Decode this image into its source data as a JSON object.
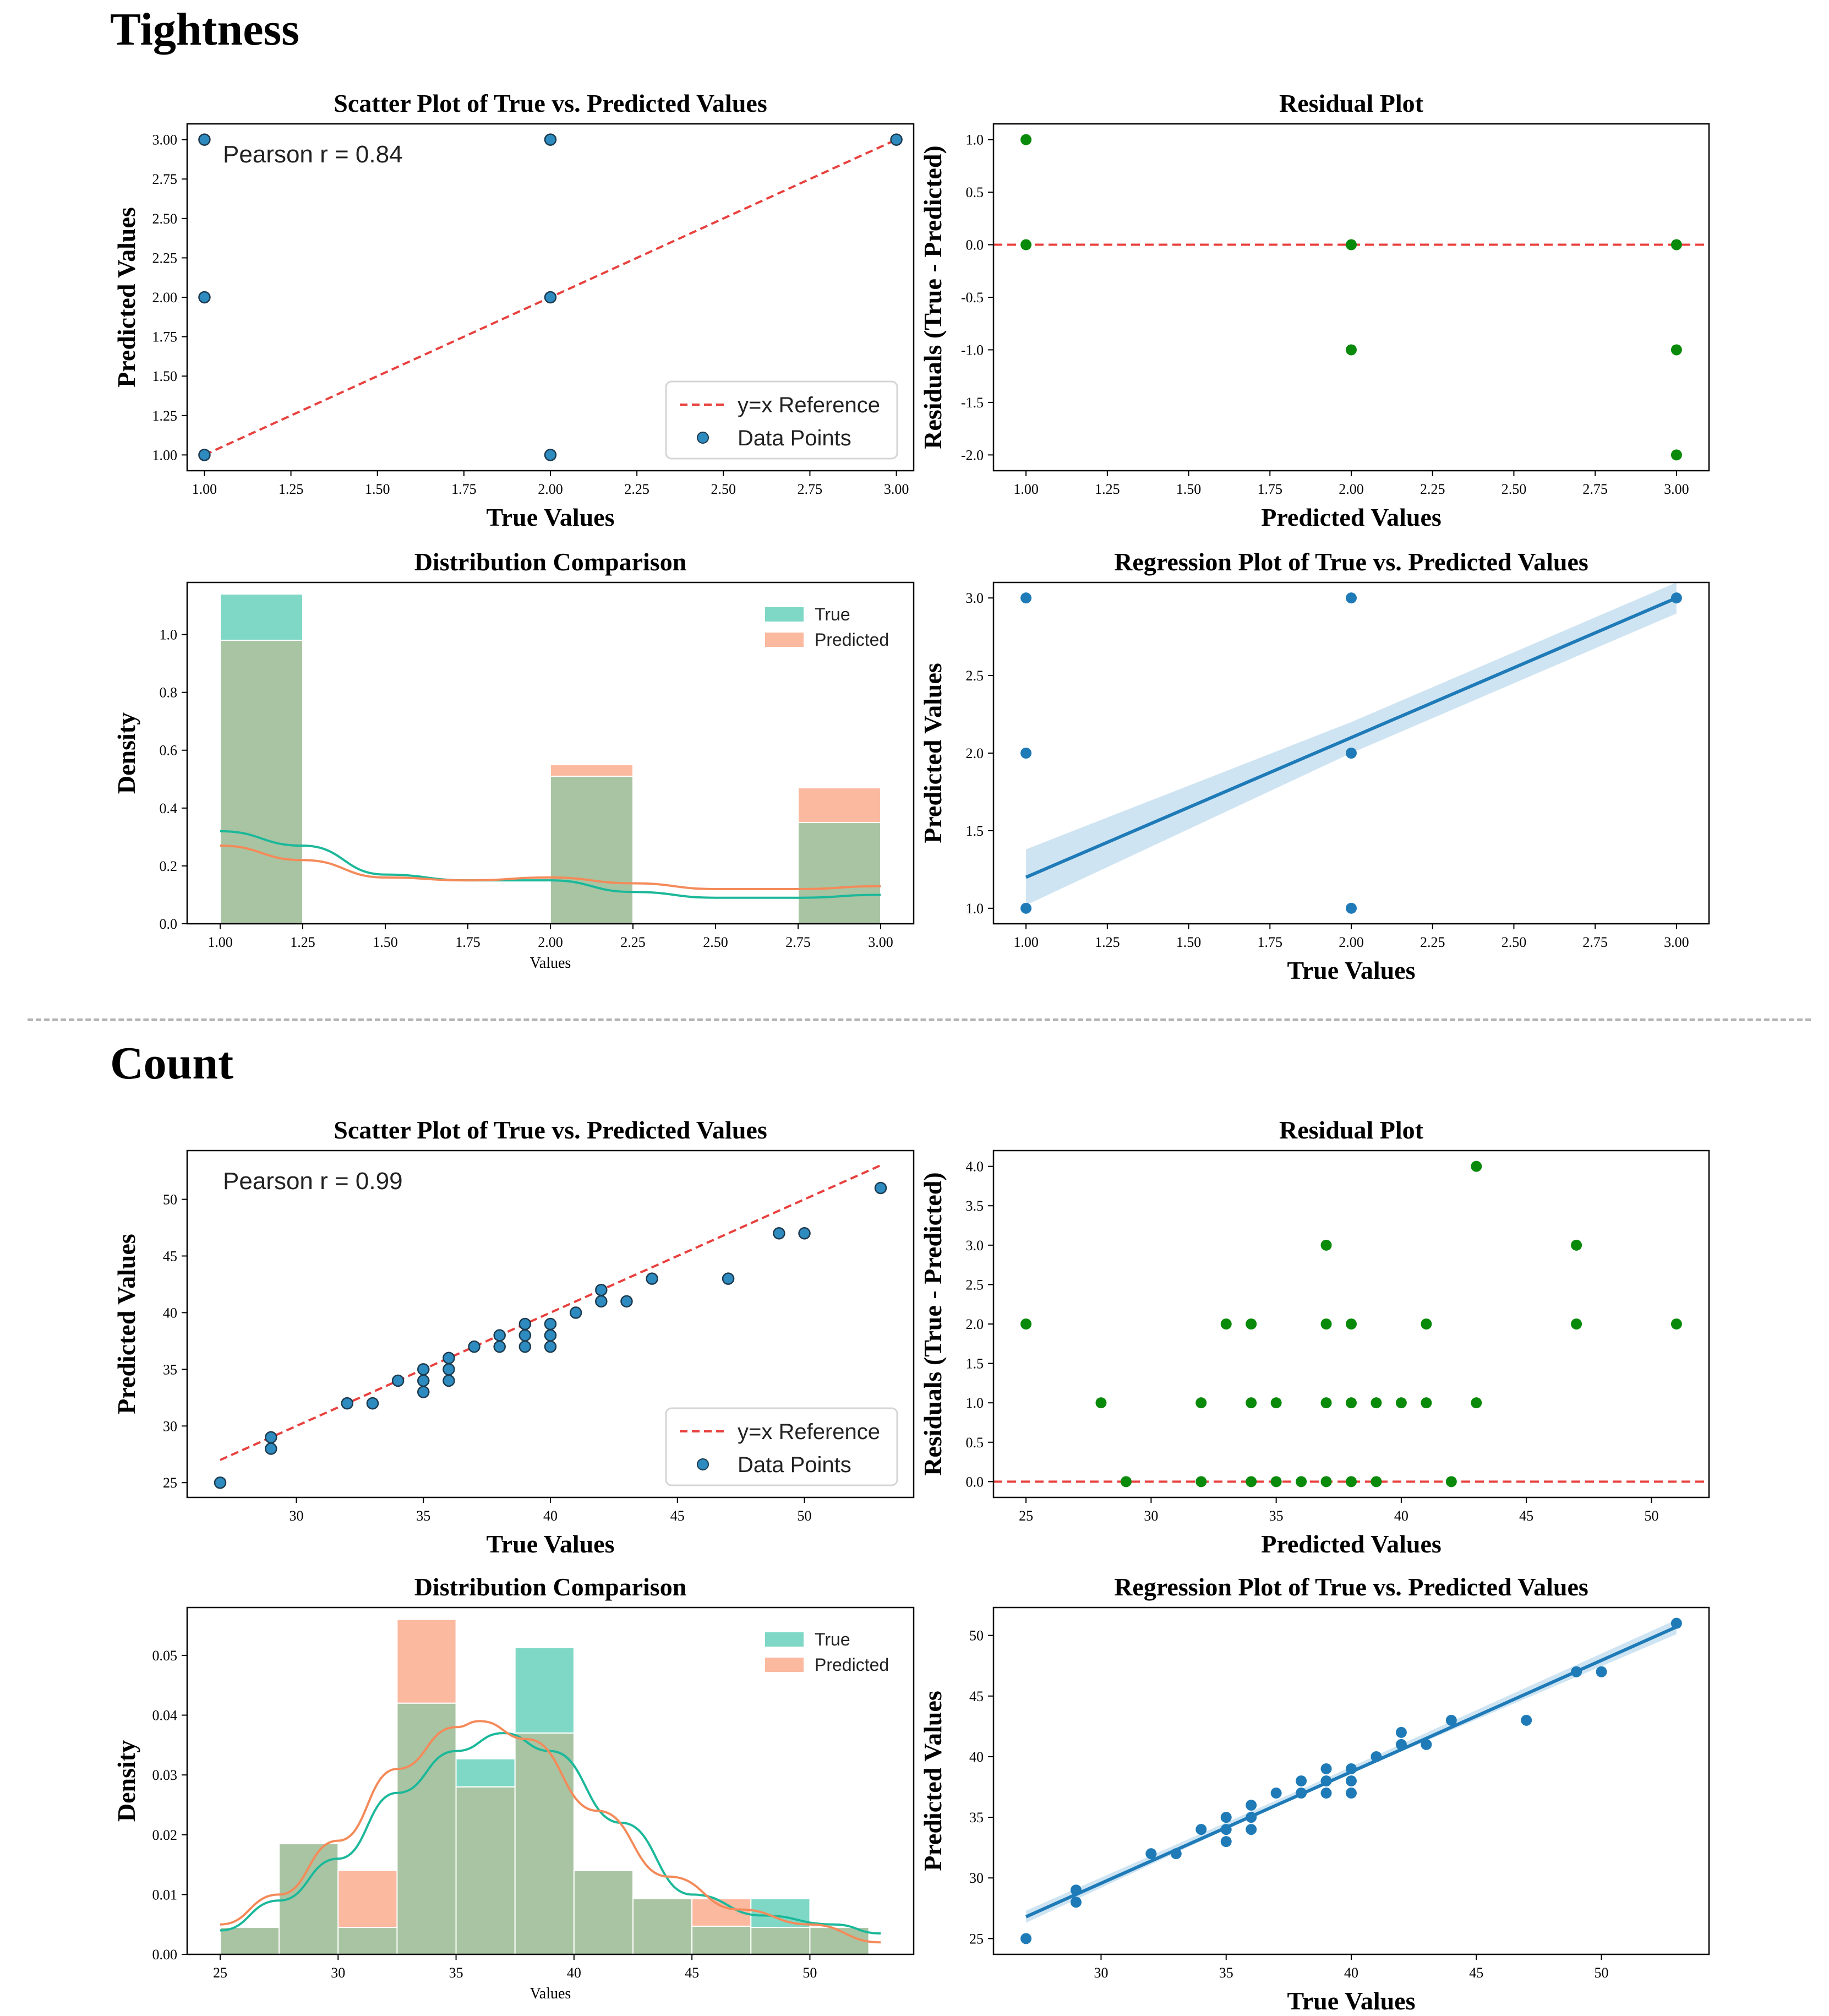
{
  "sections": [
    {
      "title": "Tightness",
      "charts": [
        {
          "type": "scatter",
          "role": "scatter",
          "title": "Scatter Plot of True vs. Predicted Values",
          "xlabel": "True Values",
          "ylabel": "Predicted Values",
          "xlim": [
            0.95,
            3.05
          ],
          "ylim": [
            0.9,
            3.1
          ],
          "xticks": [
            1.0,
            1.25,
            1.5,
            1.75,
            2.0,
            2.25,
            2.5,
            2.75,
            3.0
          ],
          "yticks": [
            1.0,
            1.25,
            1.5,
            1.75,
            2.0,
            2.25,
            2.5,
            2.75,
            3.0
          ],
          "tick_decimals": 2,
          "annotation": "Pearson r = 0.84",
          "reference_line": {
            "from": [
              1,
              1
            ],
            "to": [
              3,
              3
            ]
          },
          "legend": [
            "y=x Reference",
            "Data Points"
          ],
          "points": [
            [
              1,
              1
            ],
            [
              1,
              2
            ],
            [
              1,
              3
            ],
            [
              2,
              1
            ],
            [
              2,
              2
            ],
            [
              2,
              3
            ],
            [
              3,
              3
            ]
          ]
        },
        {
          "type": "scatter",
          "role": "residual",
          "title": "Residual Plot",
          "xlabel": "Predicted Values",
          "ylabel": "Residuals (True - Predicted)",
          "xlim": [
            0.9,
            3.1
          ],
          "ylim": [
            -2.15,
            1.15
          ],
          "xticks": [
            1.0,
            1.25,
            1.5,
            1.75,
            2.0,
            2.25,
            2.5,
            2.75,
            3.0
          ],
          "yticks": [
            -2.0,
            -1.5,
            -1.0,
            -0.5,
            0.0,
            0.5,
            1.0
          ],
          "tick_decimals": 2,
          "ytick_decimals": 1,
          "points": [
            [
              1,
              1
            ],
            [
              1,
              0
            ],
            [
              2,
              0
            ],
            [
              2,
              -1
            ],
            [
              3,
              0
            ],
            [
              3,
              -1
            ],
            [
              3,
              -2
            ]
          ]
        },
        {
          "type": "bar",
          "role": "hist",
          "title": "Distribution Comparison",
          "xlabel": "Values",
          "ylabel": "Density",
          "xlim": [
            0.9,
            3.1
          ],
          "ylim": [
            0,
            1.18
          ],
          "xticks": [
            1.0,
            1.25,
            1.5,
            1.75,
            2.0,
            2.25,
            2.5,
            2.75,
            3.0
          ],
          "yticks": [
            0.0,
            0.2,
            0.4,
            0.6,
            0.8,
            1.0
          ],
          "tick_decimals": 2,
          "ytick_decimals": 1,
          "legend": [
            "True",
            "Predicted"
          ],
          "bins": [
            [
              1.0,
              1.25
            ],
            [
              2.0,
              2.25
            ],
            [
              2.75,
              3.0
            ]
          ],
          "series": [
            {
              "name": "True",
              "values": [
                1.14,
                0.51,
                0.35
              ]
            },
            {
              "name": "Predicted",
              "values": [
                0.98,
                0.55,
                0.47
              ]
            }
          ],
          "kde": [
            {
              "name": "True",
              "x": [
                1.0,
                1.25,
                1.5,
                1.75,
                2.0,
                2.25,
                2.5,
                2.75,
                3.0
              ],
              "y": [
                0.32,
                0.27,
                0.17,
                0.15,
                0.15,
                0.11,
                0.09,
                0.09,
                0.1
              ]
            },
            {
              "name": "Predicted",
              "x": [
                1.0,
                1.25,
                1.5,
                1.75,
                2.0,
                2.25,
                2.5,
                2.75,
                3.0
              ],
              "y": [
                0.27,
                0.22,
                0.16,
                0.15,
                0.16,
                0.14,
                0.12,
                0.12,
                0.13
              ]
            }
          ]
        },
        {
          "type": "scatter",
          "role": "regression",
          "title": "Regression Plot of True vs. Predicted Values",
          "xlabel": "True Values",
          "ylabel": "Predicted Values",
          "xlim": [
            0.9,
            3.1
          ],
          "ylim": [
            0.9,
            3.1
          ],
          "xticks": [
            1.0,
            1.25,
            1.5,
            1.75,
            2.0,
            2.25,
            2.5,
            2.75,
            3.0
          ],
          "yticks": [
            1.0,
            1.5,
            2.0,
            2.5,
            3.0
          ],
          "tick_decimals": 2,
          "ytick_decimals": 1,
          "points": [
            [
              1,
              1
            ],
            [
              1,
              2
            ],
            [
              1,
              3
            ],
            [
              2,
              1
            ],
            [
              2,
              2
            ],
            [
              2,
              3
            ],
            [
              3,
              3
            ]
          ],
          "fit": {
            "from": [
              1,
              1.2
            ],
            "to": [
              3,
              3.0
            ]
          },
          "band": {
            "upper": [
              [
                1,
                1.38
              ],
              [
                2,
                2.2
              ],
              [
                3,
                3.1
              ]
            ],
            "lower": [
              [
                1,
                1.02
              ],
              [
                2,
                2.0
              ],
              [
                3,
                2.9
              ]
            ]
          }
        }
      ]
    },
    {
      "title": "Count",
      "charts": [
        {
          "type": "scatter",
          "role": "scatter",
          "title": "Scatter Plot of True vs. Predicted Values",
          "xlabel": "True Values",
          "ylabel": "Predicted Values",
          "xlim": [
            25.7,
            54.3
          ],
          "ylim": [
            23.7,
            54.3
          ],
          "xticks": [
            30,
            35,
            40,
            45,
            50
          ],
          "yticks": [
            25,
            30,
            35,
            40,
            45,
            50
          ],
          "tick_decimals": 0,
          "annotation": "Pearson r = 0.99",
          "reference_line": {
            "from": [
              27,
              27
            ],
            "to": [
              53,
              53
            ]
          },
          "legend": [
            "y=x Reference",
            "Data Points"
          ],
          "points": [
            [
              27,
              25
            ],
            [
              29,
              28
            ],
            [
              29,
              29
            ],
            [
              32,
              32
            ],
            [
              33,
              32
            ],
            [
              34,
              34
            ],
            [
              35,
              33
            ],
            [
              35,
              34
            ],
            [
              35,
              35
            ],
            [
              36,
              34
            ],
            [
              36,
              35
            ],
            [
              36,
              36
            ],
            [
              37,
              37
            ],
            [
              38,
              37
            ],
            [
              38,
              38
            ],
            [
              39,
              37
            ],
            [
              39,
              38
            ],
            [
              39,
              39
            ],
            [
              40,
              37
            ],
            [
              40,
              38
            ],
            [
              40,
              39
            ],
            [
              41,
              40
            ],
            [
              42,
              41
            ],
            [
              42,
              42
            ],
            [
              43,
              41
            ],
            [
              44,
              43
            ],
            [
              47,
              43
            ],
            [
              49,
              47
            ],
            [
              50,
              47
            ],
            [
              53,
              51
            ]
          ]
        },
        {
          "type": "scatter",
          "role": "residual",
          "title": "Residual Plot",
          "xlabel": "Predicted Values",
          "ylabel": "Residuals (True - Predicted)",
          "xlim": [
            23.7,
            52.3
          ],
          "ylim": [
            -0.2,
            4.2
          ],
          "xticks": [
            25,
            30,
            35,
            40,
            45,
            50
          ],
          "yticks": [
            0.0,
            0.5,
            1.0,
            1.5,
            2.0,
            2.5,
            3.0,
            3.5,
            4.0
          ],
          "tick_decimals": 0,
          "ytick_decimals": 1,
          "points": [
            [
              25,
              2
            ],
            [
              28,
              1
            ],
            [
              29,
              0
            ],
            [
              32,
              1
            ],
            [
              32,
              0
            ],
            [
              33,
              2
            ],
            [
              34,
              2
            ],
            [
              34,
              1
            ],
            [
              34,
              0
            ],
            [
              35,
              1
            ],
            [
              35,
              0
            ],
            [
              36,
              0
            ],
            [
              37,
              3
            ],
            [
              37,
              2
            ],
            [
              37,
              1
            ],
            [
              37,
              0
            ],
            [
              38,
              2
            ],
            [
              38,
              1
            ],
            [
              38,
              0
            ],
            [
              39,
              1
            ],
            [
              39,
              0
            ],
            [
              40,
              1
            ],
            [
              41,
              2
            ],
            [
              41,
              1
            ],
            [
              42,
              0
            ],
            [
              43,
              4
            ],
            [
              43,
              1
            ],
            [
              47,
              3
            ],
            [
              47,
              2
            ],
            [
              51,
              2
            ]
          ]
        },
        {
          "type": "bar",
          "role": "hist",
          "title": "Distribution Comparison",
          "xlabel": "Values",
          "ylabel": "Density",
          "xlim": [
            23.6,
            54.4
          ],
          "ylim": [
            0,
            0.058
          ],
          "xticks": [
            25,
            30,
            35,
            40,
            45,
            50
          ],
          "yticks": [
            0.0,
            0.01,
            0.02,
            0.03,
            0.04,
            0.05
          ],
          "tick_decimals": 0,
          "ytick_decimals": 2,
          "legend": [
            "True",
            "Predicted"
          ],
          "bins": [
            [
              25.0,
              27.5
            ],
            [
              27.5,
              30.0
            ],
            [
              30.0,
              32.5
            ],
            [
              32.5,
              35.0
            ],
            [
              35.0,
              37.5
            ],
            [
              37.5,
              40.0
            ],
            [
              40.0,
              42.5
            ],
            [
              42.5,
              45.0
            ],
            [
              45.0,
              47.5
            ],
            [
              47.5,
              50.0
            ],
            [
              50.0,
              52.5
            ]
          ],
          "series": [
            {
              "name": "True",
              "values": [
                0.0045,
                0.0185,
                0.0045,
                0.042,
                0.0327,
                0.0513,
                0.014,
                0.0093,
                0.0047,
                0.0093,
                0.0047
              ]
            },
            {
              "name": "Predicted",
              "values": [
                0.0045,
                0.0185,
                0.014,
                0.056,
                0.028,
                0.037,
                0.014,
                0.0093,
                0.0093,
                0.0045,
                0.0045
              ]
            }
          ],
          "kde": [
            {
              "name": "True",
              "x": [
                25,
                27.5,
                30,
                32.5,
                35,
                37,
                39,
                42,
                45,
                48,
                51,
                53
              ],
              "y": [
                0.004,
                0.009,
                0.016,
                0.027,
                0.034,
                0.037,
                0.034,
                0.022,
                0.01,
                0.0065,
                0.005,
                0.0035
              ]
            },
            {
              "name": "Predicted",
              "x": [
                25,
                27.5,
                30,
                32.5,
                35,
                36,
                38,
                41,
                44,
                47,
                50,
                53
              ],
              "y": [
                0.005,
                0.01,
                0.019,
                0.031,
                0.038,
                0.039,
                0.036,
                0.024,
                0.013,
                0.0075,
                0.005,
                0.002
              ]
            }
          ]
        },
        {
          "type": "scatter",
          "role": "regression",
          "title": "Regression Plot of True vs. Predicted Values",
          "xlabel": "True Values",
          "ylabel": "Predicted Values",
          "xlim": [
            25.7,
            54.3
          ],
          "ylim": [
            23.7,
            52.3
          ],
          "xticks": [
            30,
            35,
            40,
            45,
            50
          ],
          "yticks": [
            25,
            30,
            35,
            40,
            45,
            50
          ],
          "tick_decimals": 0,
          "ytick_decimals": 0,
          "points": [
            [
              27,
              25
            ],
            [
              29,
              28
            ],
            [
              29,
              29
            ],
            [
              32,
              32
            ],
            [
              33,
              32
            ],
            [
              34,
              34
            ],
            [
              35,
              33
            ],
            [
              35,
              34
            ],
            [
              35,
              35
            ],
            [
              36,
              34
            ],
            [
              36,
              35
            ],
            [
              36,
              36
            ],
            [
              37,
              37
            ],
            [
              38,
              37
            ],
            [
              38,
              38
            ],
            [
              39,
              37
            ],
            [
              39,
              38
            ],
            [
              39,
              39
            ],
            [
              40,
              37
            ],
            [
              40,
              38
            ],
            [
              40,
              39
            ],
            [
              41,
              40
            ],
            [
              42,
              41
            ],
            [
              42,
              42
            ],
            [
              43,
              41
            ],
            [
              44,
              43
            ],
            [
              47,
              43
            ],
            [
              49,
              47
            ],
            [
              50,
              47
            ],
            [
              53,
              51
            ]
          ],
          "fit": {
            "from": [
              27,
              26.8
            ],
            "to": [
              53,
              50.7
            ]
          },
          "band": {
            "upper": [
              [
                27,
                27.3
              ],
              [
                38,
                37.3
              ],
              [
                53,
                51.3
              ]
            ],
            "lower": [
              [
                27,
                26.3
              ],
              [
                38,
                36.9
              ],
              [
                53,
                50.1
              ]
            ]
          }
        }
      ]
    }
  ]
}
